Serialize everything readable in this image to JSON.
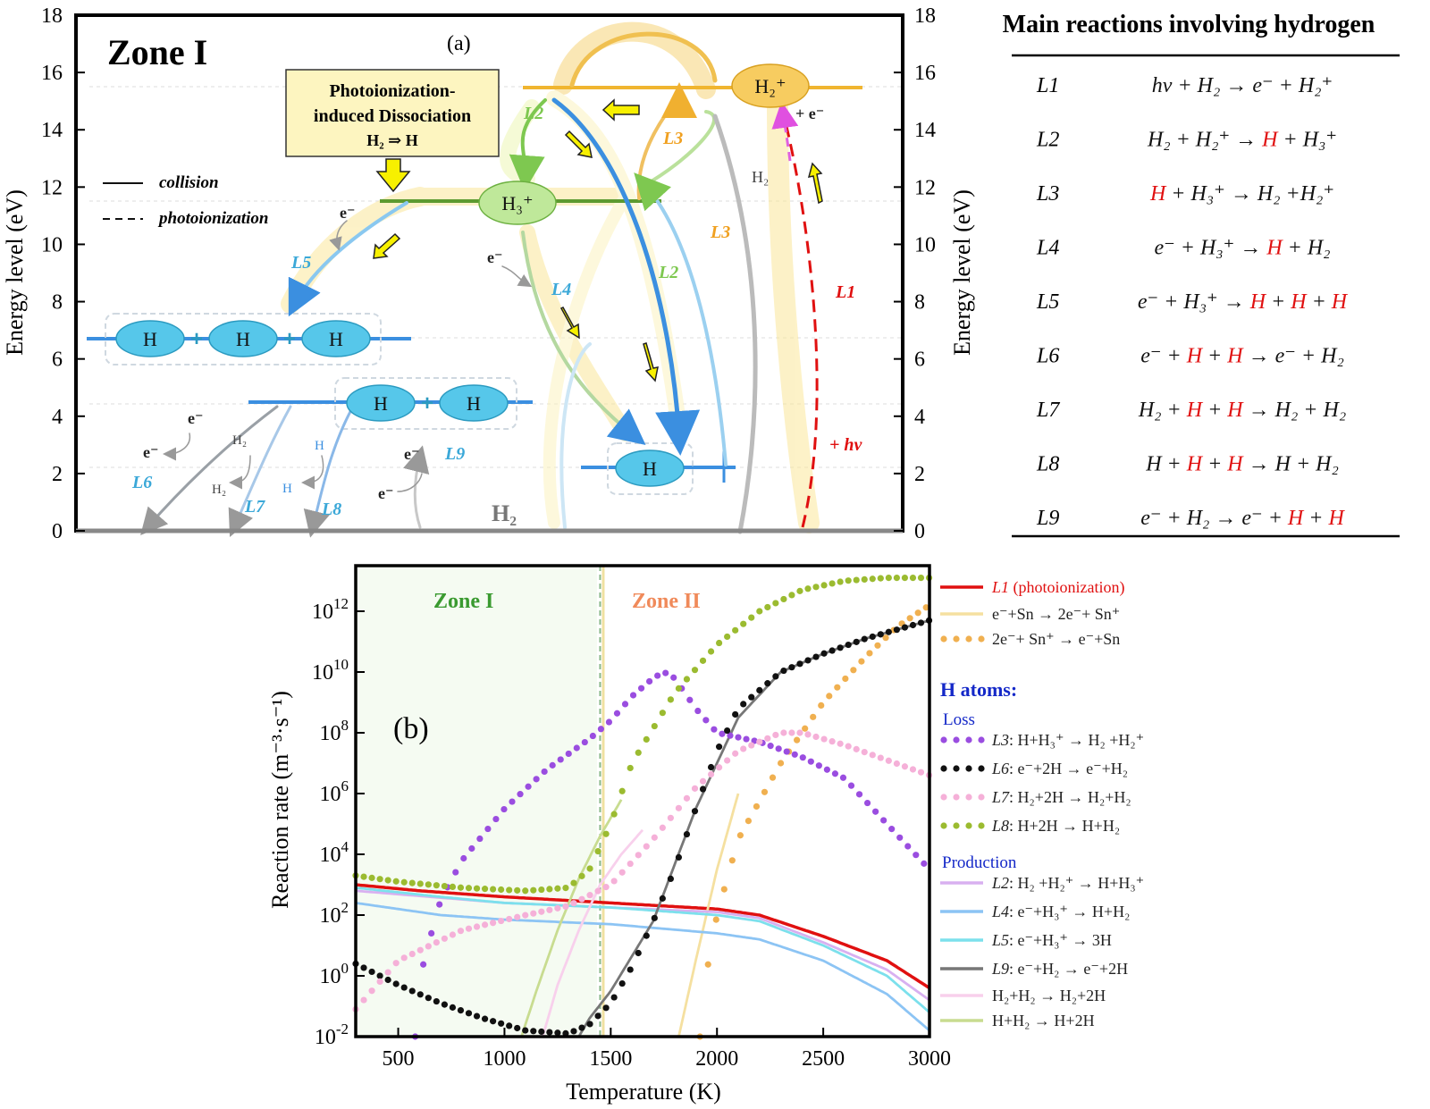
{
  "panel_a": {
    "zone_label": "Zone I",
    "panel_tag": "(a)",
    "y_label_left": "Energy level (eV)",
    "y_label_right": "Energy level (eV)",
    "y_ticks": [
      "0",
      "2",
      "4",
      "6",
      "8",
      "10",
      "12",
      "14",
      "16",
      "18"
    ],
    "callout_line1": "Photoionization-",
    "callout_line2": "induced Dissociation",
    "callout_line3": "H₂ ⇒ H",
    "legend_solid": "collision",
    "legend_dashed": "photoionization",
    "h_atom": "H",
    "plus": "+",
    "h3_ion": "H₃⁺",
    "h2_ion": "H₂⁺",
    "h2": "H₂",
    "electron": "e⁻",
    "plus_electron": "+ e⁻",
    "plus_hv": "+ hv",
    "reaction_tags": {
      "L1": "L1",
      "L2": "L2",
      "L3": "L3",
      "L4": "L4",
      "L5": "L5",
      "L6": "L6",
      "L7": "L7",
      "L8": "L8",
      "L9": "L9"
    }
  },
  "reaction_table": {
    "title": "Main reactions involving hydrogen",
    "rows": [
      {
        "label": "L1",
        "parts": [
          [
            "hv + H₂ → e⁻ + H₂⁺",
            "k"
          ]
        ]
      },
      {
        "label": "L2",
        "parts": [
          [
            "H₂ + H₂⁺ → ",
            "k"
          ],
          [
            "H",
            "r"
          ],
          [
            " + H₃⁺",
            "k"
          ]
        ]
      },
      {
        "label": "L3",
        "parts": [
          [
            "H",
            "r"
          ],
          [
            " + H₃⁺ → H₂ +H₂⁺",
            "k"
          ]
        ]
      },
      {
        "label": "L4",
        "parts": [
          [
            "e⁻ + H₃⁺ → ",
            "k"
          ],
          [
            "H",
            "r"
          ],
          [
            " + H₂",
            "k"
          ]
        ]
      },
      {
        "label": "L5",
        "parts": [
          [
            "e⁻ + H₃⁺ → ",
            "k"
          ],
          [
            "H",
            "r"
          ],
          [
            " + ",
            "k"
          ],
          [
            "H",
            "r"
          ],
          [
            " + ",
            "k"
          ],
          [
            "H",
            "r"
          ]
        ]
      },
      {
        "label": "L6",
        "parts": [
          [
            "e⁻ + ",
            "k"
          ],
          [
            "H",
            "r"
          ],
          [
            " + ",
            "k"
          ],
          [
            "H",
            "r"
          ],
          [
            " → e⁻ + H₂",
            "k"
          ]
        ]
      },
      {
        "label": "L7",
        "parts": [
          [
            "H₂ + ",
            "k"
          ],
          [
            "H",
            "r"
          ],
          [
            " + ",
            "k"
          ],
          [
            "H",
            "r"
          ],
          [
            " → H₂ + H₂",
            "k"
          ]
        ]
      },
      {
        "label": "L8",
        "parts": [
          [
            "H + ",
            "k"
          ],
          [
            "H",
            "r"
          ],
          [
            " + ",
            "k"
          ],
          [
            "H",
            "r"
          ],
          [
            " → H + H₂",
            "k"
          ]
        ]
      },
      {
        "label": "L9",
        "parts": [
          [
            "e⁻ + H₂ → e⁻ + ",
            "k"
          ],
          [
            "H",
            "r"
          ],
          [
            " + ",
            "k"
          ],
          [
            "H",
            "r"
          ]
        ]
      }
    ]
  },
  "panel_b": {
    "panel_tag": "(b)",
    "zone1": "Zone I",
    "zone2": "Zone II",
    "legend_heading": "H atoms:",
    "legend_loss": "Loss",
    "legend_production": "Production"
  },
  "colors": {
    "red": "#e01010",
    "cyan": "#3ba8d8",
    "green": "#7ec850",
    "yellow": "#f0c040",
    "purple": "#9a4de0",
    "black": "#111111",
    "pink": "#f5b0d8",
    "olive": "#9bbb30",
    "orange": "#f0b050",
    "blue": "#1428c8"
  },
  "chart_data": {
    "type": "line",
    "xlabel": "Temperature (K)",
    "ylabel": "Reaction rate (m⁻³·s⁻¹)",
    "xlim": [
      300,
      3000
    ],
    "ylim_log10": [
      -2,
      13.5
    ],
    "y_scale": "log",
    "x_ticks": [
      500,
      1000,
      1500,
      2000,
      2500,
      3000
    ],
    "y_ticks_log10": [
      -2,
      0,
      2,
      4,
      6,
      8,
      10,
      12
    ],
    "zone_boundary_K": 1450,
    "series": [
      {
        "name": "L1 (photoionization)",
        "style": "solid",
        "color": "#e01010",
        "x": [
          300,
          600,
          1000,
          1500,
          2000,
          2200,
          2500,
          2800,
          3000
        ],
        "log10y": [
          3.0,
          2.8,
          2.6,
          2.4,
          2.2,
          2.0,
          1.3,
          0.5,
          -0.4
        ]
      },
      {
        "name": "e⁻+Sn → 2e⁻+ Sn⁺",
        "style": "solid",
        "color": "#f5e0a0",
        "x": [
          1820,
          1900,
          2000,
          2100
        ],
        "log10y": [
          -2,
          0.5,
          3.5,
          6
        ]
      },
      {
        "name": "2e⁻+ Sn⁺ → e⁻+Sn",
        "style": "dots",
        "color": "#f0b050",
        "x": [
          1920,
          1960,
          2000,
          2100,
          2300,
          2500,
          2700,
          2850,
          3000
        ],
        "log10y": [
          -2,
          0.5,
          2,
          4.5,
          7,
          9,
          10.5,
          11.5,
          12.2
        ]
      },
      {
        "name": "L3: H+H₃⁺ → H₂ +H₂⁺",
        "style": "dots",
        "color": "#9a4de0",
        "x": [
          580,
          620,
          700,
          800,
          1000,
          1200,
          1400,
          1500,
          1600,
          1700,
          1750,
          1800,
          1900,
          2000,
          2200,
          2400,
          2600,
          2800,
          3000
        ],
        "log10y": [
          -2,
          0.5,
          2.5,
          3.8,
          5.5,
          6.8,
          7.8,
          8.4,
          9.2,
          9.8,
          10,
          9.8,
          8.8,
          8.0,
          7.7,
          7.2,
          6.5,
          5.0,
          3.5
        ]
      },
      {
        "name": "L6: e⁻+2H → e⁻+H₂",
        "style": "dots",
        "color": "#111111",
        "x": [
          300,
          500,
          700,
          900,
          1100,
          1300,
          1400,
          1500,
          1600,
          1700,
          1800,
          1900,
          2000,
          2100,
          2300,
          2500,
          2700,
          2900,
          3000
        ],
        "log10y": [
          0.4,
          -0.3,
          -0.9,
          -1.4,
          -1.8,
          -1.9,
          -1.6,
          -0.9,
          0.3,
          1.8,
          3.5,
          5.5,
          7.4,
          8.8,
          10,
          10.6,
          11.1,
          11.5,
          11.7
        ]
      },
      {
        "name": "L7: H₂+2H → H₂+H₂",
        "style": "dots",
        "color": "#f5b0d8",
        "x": [
          300,
          500,
          800,
          1100,
          1300,
          1500,
          1700,
          1900,
          2100,
          2300,
          2400,
          2600,
          2800,
          3000
        ],
        "log10y": [
          -1.1,
          0.5,
          1.5,
          2,
          2.3,
          3,
          4.5,
          6.2,
          7.4,
          8,
          8,
          7.6,
          7.1,
          6.6
        ]
      },
      {
        "name": "L8: H+2H → H+H₂",
        "style": "dots",
        "color": "#9bbb30",
        "x": [
          300,
          500,
          800,
          1100,
          1300,
          1400,
          1500,
          1600,
          1800,
          2000,
          2200,
          2400,
          2600,
          2800,
          3000
        ],
        "log10y": [
          3.3,
          3.1,
          2.9,
          2.8,
          2.9,
          3.5,
          5,
          7,
          9.3,
          10.9,
          12,
          12.7,
          13,
          13.1,
          13.1
        ]
      },
      {
        "name": "L2: H₂ +H₂⁺ → H+H₃⁺",
        "style": "solid",
        "color": "#d8b0f0",
        "x": [
          300,
          1000,
          1500,
          2000,
          2200,
          2500,
          2800,
          3000
        ],
        "log10y": [
          2.8,
          2.4,
          2.25,
          2.1,
          1.9,
          1.1,
          0.2,
          -0.8
        ]
      },
      {
        "name": "L4: e⁻+H₃⁺ → H+H₂",
        "style": "solid",
        "color": "#8cc4f4",
        "x": [
          300,
          700,
          1000,
          1500,
          2000,
          2200,
          2500,
          2800,
          3000
        ],
        "log10y": [
          2.4,
          2.0,
          1.85,
          1.7,
          1.4,
          1.2,
          0.5,
          -0.6,
          -1.8
        ]
      },
      {
        "name": "L5: e⁻+H₃⁺ → 3H",
        "style": "solid",
        "color": "#7ce0ec",
        "x": [
          300,
          700,
          1000,
          1500,
          2000,
          2200,
          2500,
          2800,
          3000
        ],
        "log10y": [
          2.9,
          2.6,
          2.4,
          2.25,
          2.0,
          1.8,
          1.0,
          0,
          -1.2
        ]
      },
      {
        "name": "L9: e⁻+H₂ → e⁻+2H",
        "style": "solid",
        "color": "#777777",
        "x": [
          1350,
          1400,
          1500,
          1700,
          1900,
          2100,
          2300,
          2500,
          2700,
          2900,
          3000
        ],
        "log10y": [
          -2,
          -1.4,
          -0.5,
          1.8,
          5.5,
          8.5,
          10,
          10.6,
          11.1,
          11.5,
          11.7
        ]
      },
      {
        "name": "H₂+H₂ → H₂+2H",
        "style": "solid",
        "color": "#f8d0ec",
        "x": [
          1180,
          1250,
          1350,
          1450,
          1550,
          1650
        ],
        "log10y": [
          -2,
          -0.3,
          1.5,
          3,
          4,
          4.8
        ]
      },
      {
        "name": "H+H₂ → H+2H",
        "style": "solid",
        "color": "#c8dc90",
        "x": [
          1080,
          1150,
          1250,
          1350,
          1450,
          1550
        ],
        "log10y": [
          -2,
          -0.5,
          1.5,
          3.2,
          4.6,
          5.8
        ]
      }
    ]
  }
}
